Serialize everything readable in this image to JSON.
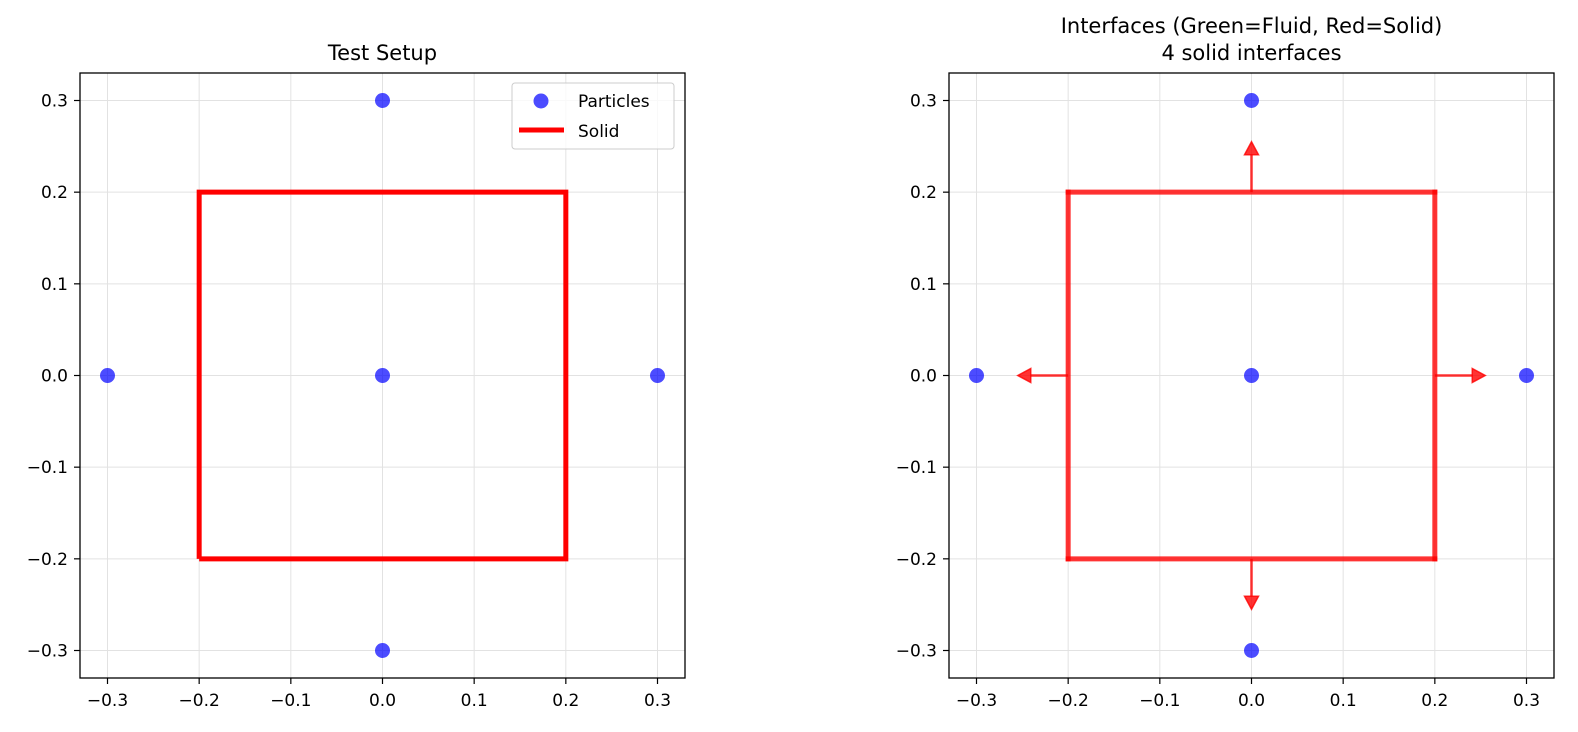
{
  "colors": {
    "particle": "#0000ff",
    "solid": "#ff0000",
    "grid": "#e2e2e2",
    "axes": "#000000",
    "legend_border": "#cccccc"
  },
  "chart_data": [
    {
      "type": "scatter",
      "title": "Test Setup",
      "xlim": [
        -0.33,
        0.33
      ],
      "ylim": [
        -0.33,
        0.33
      ],
      "xticks": [
        -0.3,
        -0.2,
        -0.1,
        0.0,
        0.1,
        0.2,
        0.3
      ],
      "yticks": [
        -0.3,
        -0.2,
        -0.1,
        0.0,
        0.1,
        0.2,
        0.3
      ],
      "xtick_labels": [
        "−0.3",
        "−0.2",
        "−0.1",
        "0.0",
        "0.1",
        "0.2",
        "0.3"
      ],
      "ytick_labels": [
        "−0.3",
        "−0.2",
        "−0.1",
        "0.0",
        "0.1",
        "0.2",
        "0.3"
      ],
      "grid": true,
      "legend_position": "top-right",
      "series": [
        {
          "name": "Particles",
          "kind": "scatter",
          "points": [
            [
              0.0,
              0.3
            ],
            [
              -0.3,
              0.0
            ],
            [
              0.0,
              0.0
            ],
            [
              0.3,
              0.0
            ],
            [
              0.0,
              -0.3
            ]
          ]
        },
        {
          "name": "Solid",
          "kind": "line",
          "points": [
            [
              -0.2,
              -0.2
            ],
            [
              0.2,
              -0.2
            ],
            [
              0.2,
              0.2
            ],
            [
              -0.2,
              0.2
            ],
            [
              -0.2,
              -0.2
            ]
          ]
        }
      ]
    },
    {
      "type": "scatter",
      "title": "Interfaces (Green=Fluid, Red=Solid)",
      "subtitle": "4 solid interfaces",
      "xlim": [
        -0.33,
        0.33
      ],
      "ylim": [
        -0.33,
        0.33
      ],
      "xticks": [
        -0.3,
        -0.2,
        -0.1,
        0.0,
        0.1,
        0.2,
        0.3
      ],
      "yticks": [
        -0.3,
        -0.2,
        -0.1,
        0.0,
        0.1,
        0.2,
        0.3
      ],
      "xtick_labels": [
        "−0.3",
        "−0.2",
        "−0.1",
        "0.0",
        "0.1",
        "0.2",
        "0.3"
      ],
      "ytick_labels": [
        "−0.3",
        "−0.2",
        "−0.1",
        "0.0",
        "0.1",
        "0.2",
        "0.3"
      ],
      "grid": true,
      "series": [
        {
          "kind": "scatter",
          "points": [
            [
              0.0,
              0.3
            ],
            [
              -0.3,
              0.0
            ],
            [
              0.0,
              0.0
            ],
            [
              0.3,
              0.0
            ],
            [
              0.0,
              -0.3
            ]
          ]
        },
        {
          "kind": "interfaces",
          "segments": [
            [
              [
                -0.2,
                -0.2
              ],
              [
                0.2,
                -0.2
              ]
            ],
            [
              [
                0.2,
                -0.2
              ],
              [
                0.2,
                0.2
              ]
            ],
            [
              [
                0.2,
                0.2
              ],
              [
                -0.2,
                0.2
              ]
            ],
            [
              [
                -0.2,
                0.2
              ],
              [
                -0.2,
                -0.2
              ]
            ]
          ],
          "normals": [
            {
              "from": [
                0.0,
                0.2
              ],
              "to": [
                0.0,
                0.255
              ]
            },
            {
              "from": [
                0.0,
                -0.2
              ],
              "to": [
                0.0,
                -0.255
              ]
            },
            {
              "from": [
                -0.2,
                0.0
              ],
              "to": [
                -0.255,
                0.0
              ]
            },
            {
              "from": [
                0.2,
                0.0
              ],
              "to": [
                0.255,
                0.0
              ]
            }
          ]
        }
      ]
    }
  ]
}
